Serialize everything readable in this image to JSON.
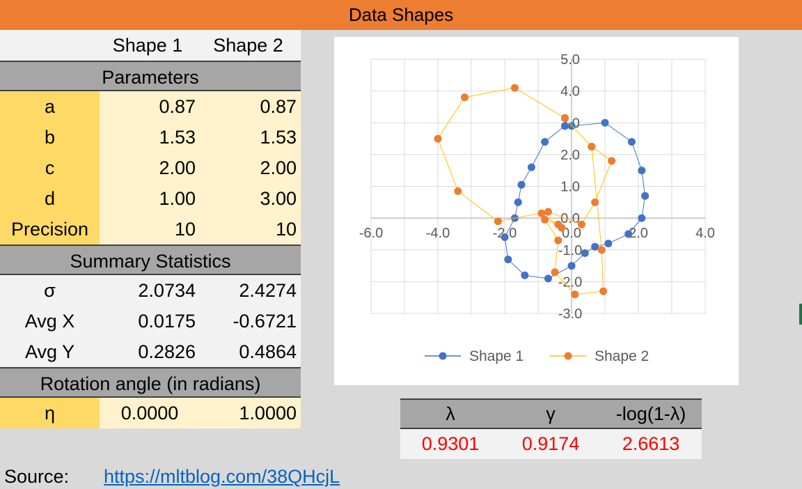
{
  "title": "Data Shapes",
  "table": {
    "columns": [
      "Shape 1",
      "Shape 2"
    ],
    "parameters_heading": "Parameters",
    "parameters": [
      {
        "label": "a",
        "v1": "0.87",
        "v2": "0.87"
      },
      {
        "label": "b",
        "v1": "1.53",
        "v2": "1.53"
      },
      {
        "label": "c",
        "v1": "2.00",
        "v2": "2.00"
      },
      {
        "label": "d",
        "v1": "1.00",
        "v2": "3.00"
      },
      {
        "label": "Precision",
        "v1": "10",
        "v2": "10"
      }
    ],
    "summary_heading": "Summary Statistics",
    "summary": [
      {
        "label": "σ",
        "v1": "2.0734",
        "v2": "2.4274"
      },
      {
        "label": "Avg X",
        "v1": "0.0175",
        "v2": "-0.6721"
      },
      {
        "label": "Avg Y",
        "v1": "0.2826",
        "v2": "0.4864"
      }
    ],
    "rotation_heading": "Rotation angle (in radians)",
    "rotation": {
      "label": "η",
      "v1": "0.0000",
      "v2": "1.0000"
    }
  },
  "lambda_table": {
    "headers": [
      "λ",
      "γ",
      "-log(1-λ)"
    ],
    "values": [
      "0.9301",
      "0.9174",
      "2.6613"
    ]
  },
  "source": {
    "label": "Source:",
    "link": "https://mltblog.com/38QHcjL"
  },
  "colors": {
    "shape1": "#4472c4",
    "shape2": "#ed7d31",
    "shape2_line": "#ffc000"
  },
  "chart_data": {
    "type": "scatter",
    "xlim": [
      -6,
      4
    ],
    "ylim": [
      -3,
      5
    ],
    "x_ticks": [
      "-6.0",
      "-4.0",
      "-2.0",
      "0.0",
      "2.0",
      "4.0"
    ],
    "y_ticks": [
      "5.0",
      "4.0",
      "3.0",
      "2.0",
      "1.0",
      "0.0",
      "-1.0",
      "-2.0",
      "-3.0"
    ],
    "grid": true,
    "legend": "bottom",
    "series": [
      {
        "name": "Shape 1",
        "x": [
          0.0,
          1.0,
          1.8,
          2.1,
          2.2,
          2.1,
          1.7,
          1.1,
          0.7,
          0.4,
          0.0,
          -0.7,
          -1.4,
          -1.9,
          -2.0,
          -1.7,
          -1.6,
          -1.5,
          -1.2,
          -0.8,
          -0.2
        ],
        "y": [
          2.9,
          3.0,
          2.4,
          1.5,
          0.7,
          0.0,
          -0.5,
          -0.8,
          -0.9,
          -1.1,
          -1.5,
          -1.9,
          -1.8,
          -1.3,
          -0.6,
          0.0,
          0.5,
          1.05,
          1.6,
          2.4,
          2.9
        ]
      },
      {
        "name": "Shape 2",
        "x": [
          -0.2,
          0.6,
          1.2,
          0.7,
          0.3,
          -0.7,
          -2.2,
          -3.4,
          -4.0,
          -3.2,
          -1.7,
          -0.2,
          0.6,
          0.9,
          0.95,
          0.1,
          -0.5,
          -0.4,
          -0.9,
          -0.3,
          -0.4,
          -0.8
        ],
        "y": [
          3.15,
          2.25,
          1.8,
          0.5,
          -0.2,
          0.2,
          -0.1,
          0.85,
          2.5,
          3.8,
          4.1,
          3.15,
          2.25,
          -1.0,
          -2.3,
          -2.4,
          -1.7,
          -0.7,
          0.15,
          -0.3,
          -0.2,
          -0.05
        ]
      }
    ]
  }
}
